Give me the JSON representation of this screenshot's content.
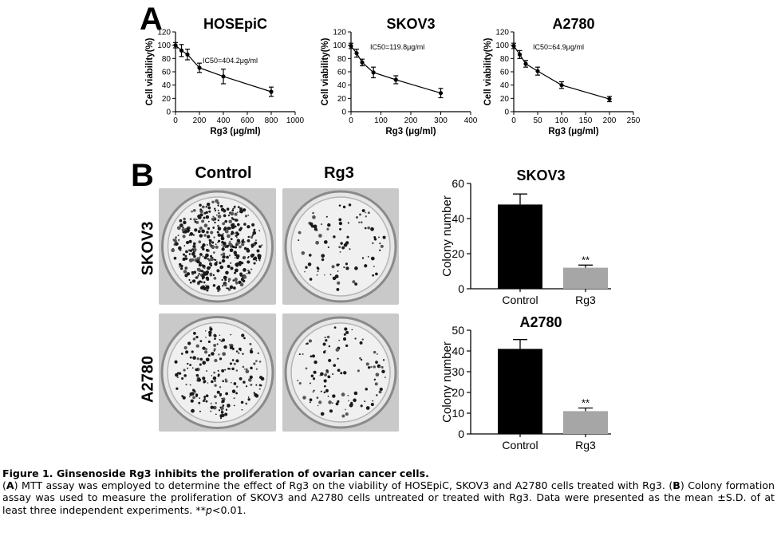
{
  "panel_labels": {
    "a": "A",
    "b": "B"
  },
  "plates": {
    "col_headers": [
      "Control",
      "Rg3"
    ],
    "row_headers": [
      "SKOV3",
      "A2780"
    ]
  },
  "caption": {
    "title": "Figure 1. Ginsenoside Rg3 inhibits the proliferation of ovarian cancer cells.",
    "a_tag": "A",
    "a_text": ") MTT assay was employed to determine the effect of Rg3 on the viability of HOSEpiC, SKOV3 and A2780 cells treated with Rg3. (",
    "b_tag": "B",
    "b_text": ") Colony formation assay was used to measure the proliferation of SKOV3 and A2780 cells untreated or treated with Rg3. Data were presented as the mean ±S.D. of at least three independent experiments. **",
    "p_italic": "p",
    "p_rest": "<0.01."
  },
  "chart_data": [
    {
      "type": "line",
      "title": "HOSEpiC",
      "xlabel": "Rg3 (μg/ml)",
      "ylabel": "Cell viability(%)",
      "annotation": "IC50=404.2μg/ml",
      "xlim": [
        0,
        1000
      ],
      "ylim": [
        0,
        120
      ],
      "xticks": [
        0,
        200,
        400,
        600,
        800,
        1000
      ],
      "yticks": [
        0,
        20,
        40,
        60,
        80,
        100,
        120
      ],
      "x": [
        0,
        50,
        100,
        200,
        400,
        800
      ],
      "y": [
        100,
        92,
        86,
        66,
        53,
        30
      ],
      "err": [
        4,
        9,
        8,
        7,
        11,
        7
      ]
    },
    {
      "type": "line",
      "title": "SKOV3",
      "xlabel": "Rg3 (μg/ml)",
      "ylabel": "Cell viability(%)",
      "annotation": "IC50=119.8μg/ml",
      "xlim": [
        0,
        400
      ],
      "ylim": [
        0,
        120
      ],
      "xticks": [
        0,
        100,
        200,
        300,
        400
      ],
      "yticks": [
        0,
        20,
        40,
        60,
        80,
        100,
        120
      ],
      "x": [
        0,
        18.75,
        37.5,
        75,
        150,
        300
      ],
      "y": [
        99,
        88,
        74,
        59,
        48,
        28
      ],
      "err": [
        4,
        6,
        5,
        8,
        6,
        7
      ]
    },
    {
      "type": "line",
      "title": "A2780",
      "xlabel": "Rg3 (μg/ml)",
      "ylabel": "Cell viability(%)",
      "annotation": "IC50=64.9μg/ml",
      "xlim": [
        0,
        250
      ],
      "ylim": [
        0,
        120
      ],
      "xticks": [
        0,
        50,
        100,
        150,
        200,
        250
      ],
      "yticks": [
        0,
        20,
        40,
        60,
        80,
        100,
        120
      ],
      "x": [
        0,
        12.5,
        25,
        50,
        100,
        200
      ],
      "y": [
        99,
        86,
        72,
        61,
        40,
        19
      ],
      "err": [
        4,
        6,
        5,
        6,
        5,
        4
      ]
    },
    {
      "type": "bar",
      "title": "SKOV3",
      "ylabel": "Colony number",
      "categories": [
        "Control",
        "Rg3"
      ],
      "values": [
        48,
        12
      ],
      "err": [
        6,
        1.5
      ],
      "colors": [
        "#000000",
        "#a6a6a6"
      ],
      "sig": [
        "",
        "**"
      ],
      "ylim": [
        0,
        60
      ],
      "yticks": [
        0,
        20,
        40,
        60
      ]
    },
    {
      "type": "bar",
      "title": "A2780",
      "ylabel": "Colony number",
      "categories": [
        "Control",
        "Rg3"
      ],
      "values": [
        41,
        11
      ],
      "err": [
        4.5,
        1.5
      ],
      "colors": [
        "#000000",
        "#a6a6a6"
      ],
      "sig": [
        "",
        "**"
      ],
      "ylim": [
        0,
        50
      ],
      "yticks": [
        0,
        10,
        20,
        30,
        40,
        50
      ]
    }
  ]
}
